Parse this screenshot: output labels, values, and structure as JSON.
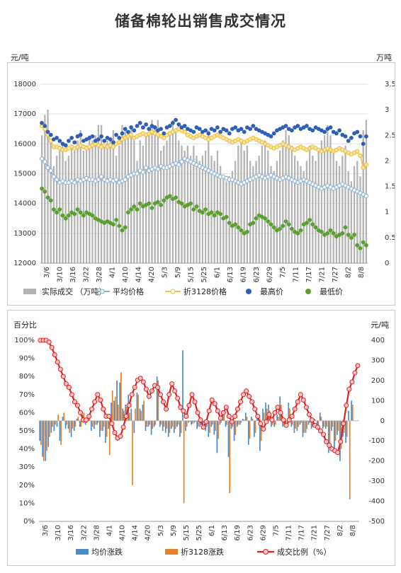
{
  "title": "储备棉轮出销售成交情况",
  "chart_data": [
    {
      "type": "bar+line+scatter",
      "y_left_unit": "元/吨",
      "y_right_unit": "万吨",
      "y_left_ticks": [
        "12000",
        "13000",
        "14000",
        "15000",
        "16000",
        "17000",
        "18000"
      ],
      "y_right_ticks": [
        "0",
        "0.5",
        "1",
        "1.5",
        "2",
        "2.5",
        "3",
        "3.5"
      ],
      "ylim_left": [
        12000,
        18000
      ],
      "ylim_right": [
        0,
        3.5
      ],
      "x_ticks": [
        "3/6",
        "3/10",
        "3/16",
        "3/22",
        "3/28",
        "4/1",
        "4/10",
        "4/14",
        "4/20",
        "5/3",
        "5/9",
        "5/15",
        "5/25",
        "6/1",
        "6/13",
        "6/19",
        "6/23",
        "6/29",
        "7/5",
        "7/11",
        "7/17",
        "7/21",
        "7/27",
        "8/2",
        "8/8"
      ],
      "legend": [
        "实际成交 （万吨）",
        "平均价格",
        "折3128价格",
        "最高价",
        "最低价"
      ],
      "colors": {
        "volume": "#b4b4b4",
        "avg": "#8fb4d9",
        "fold": "#f0c040",
        "high": "#2f5fb3",
        "low": "#5aa02c"
      },
      "series": {
        "volume": [
          2.5,
          2.9,
          3.0,
          2.4,
          1.9,
          2.1,
          2.3,
          2.3,
          2.0,
          2.1,
          2.3,
          2.2,
          2.4,
          2.6,
          2.2,
          2.3,
          2.5,
          2.4,
          2.5,
          2.7,
          2.7,
          2.3,
          2.4,
          2.4,
          2.6,
          2.1,
          2.3,
          2.7,
          2.6,
          2.6,
          2.7,
          2.4,
          2.0,
          2.4,
          2.3,
          2.5,
          2.5,
          2.8,
          2.7,
          2.8,
          2.2,
          2.3,
          2.4,
          2.5,
          2.8,
          2.6,
          2.4,
          2.3,
          2.2,
          2.3,
          2.1,
          2.3,
          2.1,
          2.0,
          2.1,
          2.2,
          2.6,
          2.1,
          2.0,
          2.2,
          1.9,
          1.7,
          1.6,
          1.7,
          1.8,
          2.0,
          2.3,
          2.4,
          2.2,
          2.3,
          2.0,
          1.9,
          2.0,
          2.1,
          2.3,
          2.4,
          2.2,
          1.9,
          1.8,
          2.0,
          2.2,
          2.4,
          2.6,
          2.5,
          2.3,
          2.1,
          2.0,
          1.9,
          1.8,
          2.0,
          2.3,
          2.1,
          2.0,
          2.2,
          2.4,
          2.5,
          2.7,
          2.5,
          2.2,
          2.0,
          1.9,
          2.1,
          2.3,
          1.8,
          1.6,
          1.9,
          2.0,
          1.7,
          2.6,
          2.8
        ],
        "avg": [
          15500,
          15400,
          15200,
          15100,
          14900,
          14800,
          14700,
          14750,
          14700,
          14700,
          14750,
          14700,
          14800,
          14750,
          14800,
          14850,
          14800,
          14800,
          14750,
          14800,
          14900,
          14800,
          14750,
          14800,
          14750,
          14800,
          14700,
          14750,
          14800,
          14900,
          14950,
          15000,
          15000,
          15100,
          15050,
          15200,
          15100,
          15150,
          15200,
          15150,
          15250,
          15200,
          15200,
          15250,
          15300,
          15350,
          15300,
          15400,
          15500,
          15450,
          15400,
          15350,
          15300,
          15250,
          15200,
          15150,
          15100,
          15050,
          15000,
          14950,
          14900,
          14900,
          14850,
          14800,
          14800,
          14750,
          14700,
          14650,
          14700,
          14750,
          14800,
          14850,
          14900,
          14950,
          14900,
          14850,
          14900,
          14950,
          14900,
          14850,
          14800,
          14850,
          14900,
          14850,
          14800,
          14750,
          14700,
          14750,
          14800,
          14750,
          14700,
          14650,
          14600,
          14550,
          14500,
          14550,
          14600,
          14550,
          14500,
          14550,
          14600,
          14650,
          14600,
          14550,
          14500,
          14450,
          14400,
          14350,
          14300,
          14250
        ],
        "fold": [
          16600,
          16500,
          16300,
          16100,
          15900,
          15900,
          15850,
          15800,
          15800,
          15850,
          15900,
          15850,
          15900,
          15950,
          15900,
          15850,
          15900,
          15950,
          16000,
          15950,
          15900,
          15950,
          15900,
          15950,
          15900,
          16000,
          16050,
          16150,
          16200,
          16250,
          16300,
          16200,
          16250,
          16300,
          16350,
          16300,
          16350,
          16400,
          16350,
          16300,
          16250,
          16200,
          16300,
          16350,
          16400,
          16450,
          16500,
          16450,
          16400,
          16300,
          16250,
          16200,
          16250,
          16300,
          16250,
          16200,
          16150,
          16200,
          16250,
          16300,
          16250,
          16200,
          16150,
          16100,
          16050,
          16100,
          16150,
          16100,
          16050,
          16100,
          16150,
          16200,
          16150,
          16100,
          16050,
          16000,
          15950,
          15900,
          15850,
          15900,
          15950,
          16000,
          15950,
          15900,
          15850,
          15800,
          15850,
          15900,
          15850,
          15800,
          15850,
          15900,
          15850,
          15800,
          15750,
          15800,
          15850,
          15800,
          15750,
          15800,
          15850,
          15800,
          15750,
          15700,
          15650,
          15700,
          15750,
          15600,
          15200,
          15300
        ],
        "high": [
          16700,
          16600,
          16400,
          16300,
          16150,
          16200,
          16100,
          16000,
          15950,
          16100,
          16200,
          16050,
          16250,
          16300,
          16100,
          16150,
          16200,
          16250,
          16100,
          16150,
          16250,
          16100,
          16200,
          16150,
          16050,
          16300,
          16200,
          16350,
          16500,
          16400,
          16550,
          16450,
          16600,
          16700,
          16550,
          16650,
          16500,
          16600,
          16550,
          16450,
          16500,
          16350,
          16550,
          16600,
          16700,
          16800,
          16650,
          16550,
          16600,
          16500,
          16450,
          16400,
          16550,
          16500,
          16400,
          16450,
          16350,
          16500,
          16450,
          16550,
          16400,
          16500,
          16450,
          16350,
          16500,
          16550,
          16450,
          16500,
          16400,
          16550,
          16500,
          16600,
          16500,
          16450,
          16400,
          16350,
          16300,
          16250,
          16350,
          16450,
          16500,
          16550,
          16600,
          16500,
          16450,
          16550,
          16600,
          16500,
          16550,
          16600,
          16500,
          16450,
          16550,
          16500,
          16450,
          16400,
          16500,
          16550,
          16400,
          16350,
          16450,
          16300,
          16250,
          16100,
          16200,
          16350,
          16400,
          16250,
          16000,
          16250
        ],
        "low": [
          14500,
          14400,
          14200,
          14100,
          13800,
          13700,
          13800,
          13600,
          13500,
          13600,
          13700,
          13650,
          13800,
          13700,
          13600,
          13700,
          13650,
          13600,
          13500,
          13450,
          13400,
          13350,
          13400,
          13350,
          13300,
          13450,
          13250,
          13100,
          13200,
          13700,
          13800,
          13900,
          13800,
          14000,
          13900,
          13950,
          14000,
          13850,
          14000,
          14050,
          13950,
          14100,
          14200,
          14250,
          14150,
          14200,
          14050,
          14000,
          13900,
          13950,
          14000,
          13800,
          13900,
          13750,
          13700,
          13800,
          13650,
          13700,
          13600,
          13700,
          13650,
          13500,
          13550,
          13350,
          13250,
          13300,
          13200,
          13100,
          13000,
          13050,
          13300,
          13350,
          13500,
          13600,
          13550,
          13500,
          13400,
          13300,
          13200,
          13100,
          13150,
          13250,
          13400,
          13300,
          13150,
          13050,
          13000,
          13100,
          13300,
          13350,
          13450,
          13300,
          13200,
          13100,
          13050,
          12950,
          13000,
          13100,
          13000,
          12900,
          12950,
          13000,
          13200,
          12950,
          12850,
          12950,
          12600,
          12500,
          12700,
          12600
        ]
      }
    },
    {
      "type": "bar+line",
      "y_left_unit": "百分比",
      "y_right_unit": "元/吨",
      "y_left_ticks": [
        "0%",
        "10%",
        "20%",
        "30%",
        "40%",
        "50%",
        "60%",
        "70%",
        "80%",
        "90%",
        "100%"
      ],
      "y_right_ticks": [
        "-500",
        "-400",
        "-300",
        "-200",
        "-100",
        "0",
        "100",
        "200",
        "300",
        "400"
      ],
      "ylim_left": [
        0,
        100
      ],
      "ylim_right": [
        -500,
        400
      ],
      "x_ticks": [
        "3/6",
        "3/10",
        "3/16",
        "3/22",
        "3/28",
        "4/1",
        "4/10",
        "4/14",
        "4/20",
        "5/3",
        "5/9",
        "5/15",
        "5/25",
        "6/1",
        "6/13",
        "6/19",
        "6/23",
        "6/29",
        "7/5",
        "7/11",
        "7/17",
        "7/21",
        "7/27",
        "8/2",
        "8/8"
      ],
      "legend": [
        "均价涨跌",
        "折3128涨跌",
        "成交比例（%）"
      ],
      "colors": {
        "avg_change": "#4a8bc8",
        "fold_change": "#e8802a",
        "ratio": "#e02020"
      },
      "series": {
        "avg_change": [
          -100,
          -180,
          -200,
          -130,
          -60,
          -50,
          -30,
          -100,
          20,
          -40,
          -40,
          -80,
          -50,
          10,
          -30,
          30,
          -20,
          10,
          -50,
          -40,
          -20,
          -80,
          -50,
          -110,
          -40,
          90,
          100,
          200,
          190,
          60,
          80,
          130,
          60,
          -60,
          140,
          60,
          80,
          -50,
          -30,
          -70,
          -30,
          220,
          -30,
          -50,
          -60,
          -80,
          -40,
          -60,
          -30,
          -80,
          350,
          -50,
          -10,
          -20,
          -10,
          -40,
          -30,
          -20,
          -50,
          -80,
          -30,
          -70,
          -160,
          -20,
          50,
          -30,
          -180,
          -40,
          -100,
          -30,
          -20,
          10,
          40,
          -120,
          20,
          -80,
          30,
          -150,
          60,
          90,
          80,
          -30,
          -30,
          30,
          120,
          -30,
          -10,
          90,
          -30,
          -60,
          -50,
          -20,
          -80,
          -60,
          -20,
          -40,
          10,
          -40,
          40,
          -40,
          -40,
          -160,
          -50,
          -140,
          -70,
          -200,
          -80,
          -110,
          50,
          100
        ],
        "fold_change": [
          -120,
          -200,
          -150,
          -80,
          -30,
          -20,
          30,
          -120,
          40,
          -20,
          -60,
          -40,
          -30,
          20,
          -30,
          40,
          -10,
          20,
          -30,
          -20,
          -10,
          -50,
          -30,
          -80,
          -170,
          150,
          120,
          80,
          240,
          50,
          70,
          40,
          -320,
          60,
          130,
          50,
          100,
          -30,
          -20,
          -40,
          -20,
          200,
          -20,
          -30,
          -40,
          -60,
          -30,
          -40,
          -20,
          -60,
          -410,
          -30,
          -5,
          -15,
          -5,
          -30,
          -20,
          -10,
          -30,
          -60,
          -20,
          -50,
          -90,
          -10,
          30,
          -20,
          -360,
          -30,
          -70,
          -20,
          -10,
          5,
          20,
          -90,
          10,
          -60,
          20,
          -100,
          40,
          60,
          50,
          -20,
          -20,
          20,
          80,
          -20,
          -5,
          60,
          -20,
          -40,
          -30,
          -10,
          -60,
          -40,
          -10,
          -30,
          5,
          -30,
          20,
          -30,
          -30,
          -120,
          -30,
          -100,
          -50,
          -140,
          -60,
          -80,
          -390,
          80
        ],
        "ratio": [
          100,
          100,
          100,
          99,
          96,
          92,
          88,
          84,
          80,
          76,
          74,
          70,
          66,
          64,
          60,
          56,
          56,
          58,
          62,
          66,
          70,
          67,
          62,
          58,
          58,
          54,
          49,
          46,
          47,
          52,
          58,
          64,
          70,
          74,
          78,
          79,
          77,
          73,
          69,
          72,
          75,
          74,
          70,
          66,
          62,
          70,
          76,
          72,
          68,
          63,
          61,
          58,
          64,
          70,
          66,
          60,
          56,
          52,
          55,
          61,
          67,
          65,
          61,
          57,
          60,
          63,
          58,
          55,
          58,
          62,
          66,
          70,
          72,
          69,
          66,
          62,
          58,
          54,
          51,
          55,
          59,
          56,
          60,
          63,
          60,
          56,
          53,
          56,
          58,
          62,
          66,
          70,
          67,
          63,
          59,
          56,
          53,
          52,
          50,
          48,
          44,
          42,
          40,
          39,
          38,
          44,
          54,
          64,
          73,
          77,
          82,
          86
        ]
      }
    }
  ]
}
